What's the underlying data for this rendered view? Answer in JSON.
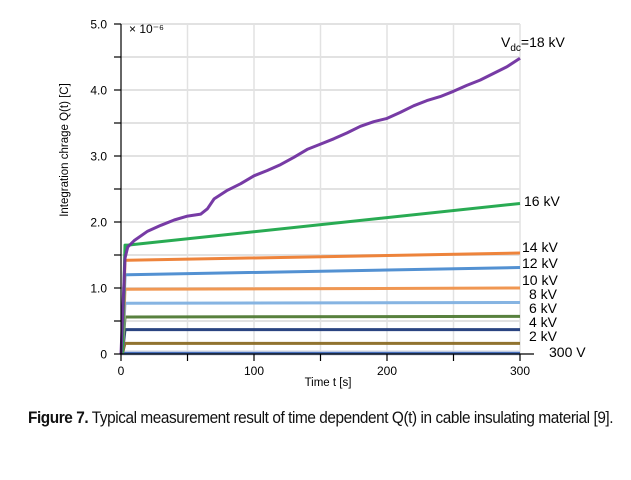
{
  "chart_data": {
    "type": "line",
    "title": "",
    "xlabel": "Time  t  [s]",
    "ylabel": "Integration chrage Q(t)  [C]",
    "y_multiplier": "× 10⁻⁶",
    "xlim": [
      0,
      300
    ],
    "ylim": [
      0,
      5.0
    ],
    "xticks": [
      0,
      100,
      200,
      300
    ],
    "xtick_labels": [
      "0",
      "100",
      "200",
      "300"
    ],
    "x_minor_step": 50,
    "yticks": [
      0,
      1.0,
      2.0,
      3.0,
      4.0,
      5.0
    ],
    "ytick_labels": [
      "0",
      "1.0",
      "2.0",
      "3.0",
      "4.0",
      "5.0"
    ],
    "y_minor_step": 0.5,
    "grid": true,
    "legend": "inline-right",
    "series": [
      {
        "name": "V_dc=18 kV",
        "label_main": "V",
        "label_sub": "dc",
        "label_rest": "=18 kV",
        "color": "#7030a0",
        "x": [
          0,
          3,
          5,
          10,
          20,
          30,
          40,
          50,
          60,
          65,
          70,
          80,
          90,
          100,
          110,
          120,
          130,
          140,
          150,
          160,
          170,
          180,
          190,
          200,
          210,
          220,
          230,
          240,
          250,
          260,
          270,
          280,
          290,
          300
        ],
        "y": [
          0,
          1.45,
          1.62,
          1.72,
          1.86,
          1.95,
          2.03,
          2.09,
          2.12,
          2.2,
          2.35,
          2.48,
          2.58,
          2.7,
          2.78,
          2.87,
          2.98,
          3.1,
          3.18,
          3.26,
          3.35,
          3.45,
          3.52,
          3.57,
          3.66,
          3.76,
          3.84,
          3.9,
          3.98,
          4.07,
          4.15,
          4.25,
          4.35,
          4.48
        ]
      },
      {
        "name": "16 kV",
        "color": "#1ea64a",
        "x": [
          5,
          300
        ],
        "y": [
          1.65,
          2.28
        ]
      },
      {
        "name": "14 kV",
        "color": "#ed7d31",
        "x": [
          5,
          300
        ],
        "y": [
          1.42,
          1.53
        ]
      },
      {
        "name": "12 kV",
        "color": "#4a8bd0",
        "x": [
          5,
          300
        ],
        "y": [
          1.2,
          1.31
        ]
      },
      {
        "name": "10 kV",
        "color": "#f0924a",
        "x": [
          5,
          300
        ],
        "y": [
          0.98,
          1.0
        ]
      },
      {
        "name": "8 kV",
        "color": "#7fb0e0",
        "x": [
          5,
          300
        ],
        "y": [
          0.77,
          0.78
        ]
      },
      {
        "name": "6 kV",
        "color": "#4f7a34",
        "x": [
          5,
          300
        ],
        "y": [
          0.56,
          0.57
        ]
      },
      {
        "name": "4 kV",
        "color": "#1f3a7a",
        "x": [
          5,
          300
        ],
        "y": [
          0.37,
          0.37
        ]
      },
      {
        "name": "2 kV",
        "color": "#8b6b24",
        "x": [
          5,
          300
        ],
        "y": [
          0.16,
          0.16
        ]
      },
      {
        "name": "300 V",
        "color": "#3e68b8",
        "x": [
          0,
          300
        ],
        "y": [
          0.01,
          0.01
        ]
      }
    ]
  },
  "caption": {
    "label": "Figure 7.",
    "text": " Typical measurement result of time dependent Q(t) in cable insulating material [9]."
  }
}
